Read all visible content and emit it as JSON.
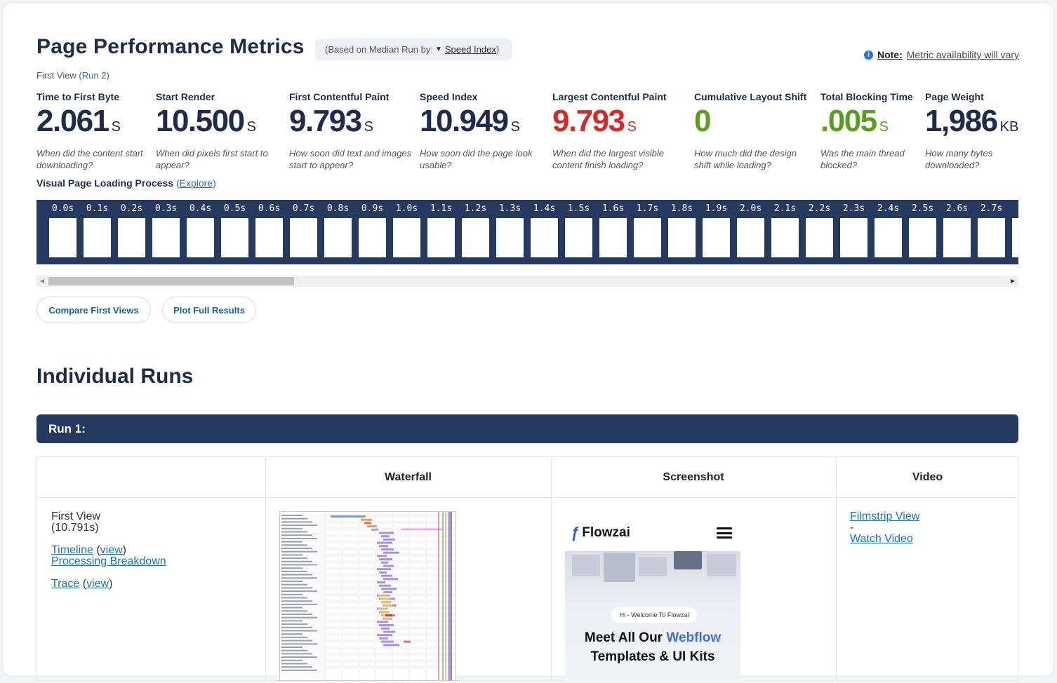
{
  "header": {
    "title": "Page Performance Metrics",
    "based_on_prefix": "(Based on Median Run by:",
    "based_on_caret": "▼",
    "based_on_value": "Speed Index",
    "based_on_suffix": ")",
    "note_label": "Note:",
    "note_text": "Metric availability will vary",
    "first_view_prefix": "First View (",
    "first_view_run": "Run 2",
    "first_view_suffix": ")"
  },
  "metrics": [
    {
      "label": "Time to First Byte",
      "value": "2.061",
      "unit": "S",
      "question": "When did the content start downloading?",
      "color": "#1e2b4a"
    },
    {
      "label": "Start Render",
      "value": "10.500",
      "unit": "S",
      "question": "When did pixels first start to appear?",
      "color": "#1e2b4a"
    },
    {
      "label": "First Contentful Paint",
      "value": "9.793",
      "unit": "S",
      "question": "How soon did text and images start to appear?",
      "color": "#1e2b4a"
    },
    {
      "label": "Speed Index",
      "value": "10.949",
      "unit": "S",
      "question": "How soon did the page look usable?",
      "color": "#1e2b4a"
    },
    {
      "label": "Largest Contentful Paint",
      "value": "9.793",
      "unit": "S",
      "question": "When did the largest visible content finish loading?",
      "color": "#d52a2a"
    },
    {
      "label": "Cumulative Layout Shift",
      "value": "0",
      "unit": "",
      "question": "How much did the design shift while loading?",
      "color": "#5a9e1f"
    },
    {
      "label": "Total Blocking Time",
      "value": ".005",
      "unit": "S",
      "question": "Was the main thread blocked?",
      "color": "#5a9e1f"
    },
    {
      "label": "Page Weight",
      "value": "1,986",
      "unit": "KB",
      "question": "How many bytes downloaded?",
      "color": "#1e2b4a"
    }
  ],
  "visual_loading": {
    "label": "Visual Page Loading Process",
    "explore_open": "(",
    "explore": "Explore",
    "explore_close": ")",
    "frames": [
      "0.0s",
      "0.1s",
      "0.2s",
      "0.3s",
      "0.4s",
      "0.5s",
      "0.6s",
      "0.7s",
      "0.8s",
      "0.9s",
      "1.0s",
      "1.1s",
      "1.2s",
      "1.3s",
      "1.4s",
      "1.5s",
      "1.6s",
      "1.7s",
      "1.8s",
      "1.9s",
      "2.0s",
      "2.1s",
      "2.2s",
      "2.3s",
      "2.4s",
      "2.5s",
      "2.6s",
      "2.7s",
      "2"
    ]
  },
  "buttons": {
    "compare": "Compare First Views",
    "plot": "Plot Full Results"
  },
  "runs": {
    "title": "Individual Runs",
    "run1_label": "Run 1:",
    "columns": [
      "",
      "Waterfall",
      "Screenshot",
      "Video"
    ],
    "first_view": "First View",
    "first_view_time": "(10.791s)",
    "timeline": "Timeline",
    "view": "view",
    "processing": "Processing Breakdown",
    "trace": "Trace",
    "filmstrip": "Filmstrip View",
    "dash": "-",
    "watch": "Watch Video"
  },
  "screenshot": {
    "brand": "Flowzai",
    "badge": "Hi - Welcome To Flowzai",
    "headline_a": "Meet All Our ",
    "headline_b": "Webflow",
    "headline_c": "Templates & UI Kits"
  }
}
